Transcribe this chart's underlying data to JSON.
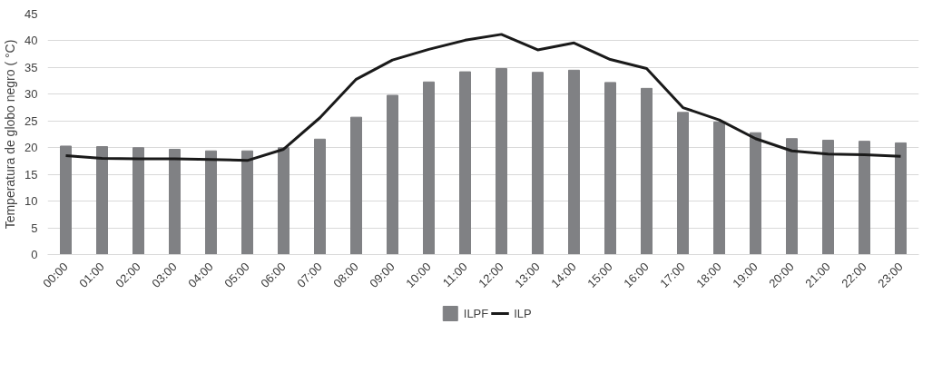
{
  "chart_data": {
    "type": "bar",
    "ylabel": "Temperatura de globo negro ( °C)",
    "categories": [
      "00:00",
      "01:00",
      "02:00",
      "03:00",
      "04:00",
      "05:00",
      "06:00",
      "07:00",
      "08:00",
      "09:00",
      "10:00",
      "11:00",
      "12:00",
      "13:00",
      "14:00",
      "15:00",
      "16:00",
      "17:00",
      "18:00",
      "19:00",
      "20:00",
      "21:00",
      "22:00",
      "23:00"
    ],
    "series": [
      {
        "name": "ILPF",
        "color": "#808184",
        "values": [
          20.3,
          20.2,
          20.0,
          19.7,
          19.4,
          19.4,
          20.0,
          21.6,
          25.7,
          29.8,
          32.3,
          34.2,
          34.8,
          34.1,
          34.5,
          32.2,
          31.1,
          26.6,
          24.8,
          22.8,
          21.7,
          21.4,
          21.2,
          20.9
        ]
      },
      {
        "name": "ILP",
        "type": "line",
        "color": "#1a1a1a",
        "values": [
          18.5,
          18.0,
          17.9,
          17.9,
          17.8,
          17.6,
          19.7,
          25.6,
          32.8,
          36.4,
          38.4,
          40.1,
          41.2,
          38.3,
          39.6,
          36.5,
          34.8,
          27.5,
          25.2,
          21.7,
          19.4,
          18.8,
          18.7,
          18.4
        ]
      }
    ],
    "ylim": [
      0,
      45
    ],
    "yticks": [
      0,
      5,
      10,
      15,
      20,
      25,
      30,
      35,
      40,
      45
    ],
    "grid": "y",
    "legend": "bottom"
  }
}
